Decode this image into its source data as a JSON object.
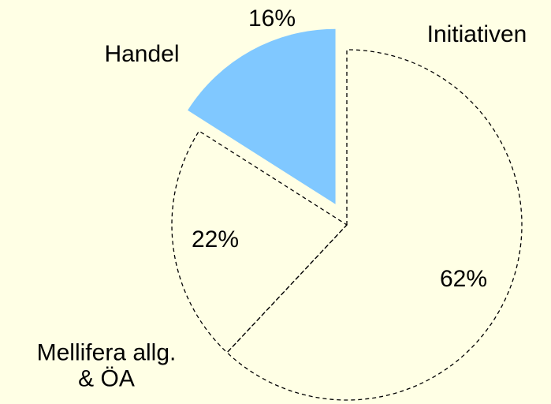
{
  "chart_data": {
    "type": "pie",
    "categories": [
      "Initiativen",
      "Mellifera allg.\n& ÖA",
      "Handel"
    ],
    "values": [
      62,
      22,
      16
    ],
    "value_labels": [
      "62%",
      "22%",
      "16%"
    ],
    "colors": [
      "none",
      "none",
      "#80c8ff"
    ],
    "outline": [
      "dashed",
      "dashed",
      "none"
    ],
    "exploded": [
      false,
      false,
      true
    ]
  }
}
